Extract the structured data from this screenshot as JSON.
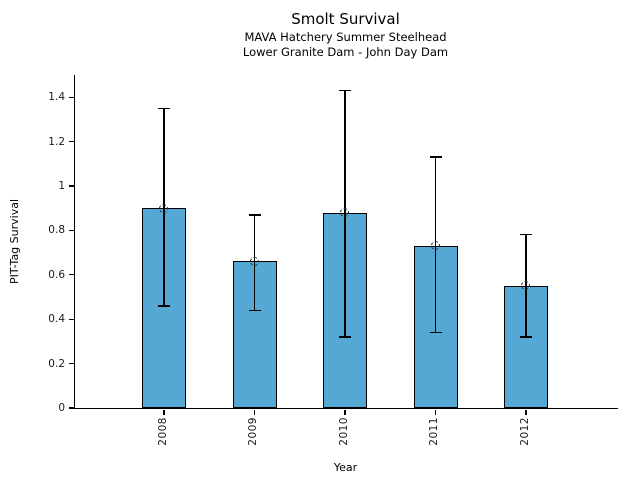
{
  "figure": {
    "title": "Smolt Survival",
    "subtitle_line1": "MAVA Hatchery Summer Steelhead",
    "subtitle_line2": "Lower Granite Dam - John Day Dam"
  },
  "chart_data": {
    "type": "bar",
    "title": "Smolt Survival",
    "subtitle": [
      "MAVA Hatchery Summer Steelhead",
      "Lower Granite Dam - John Day Dam"
    ],
    "xlabel": "Year",
    "ylabel": "PIT-Tag Survival",
    "categories": [
      "2008",
      "2009",
      "2010",
      "2011",
      "2012"
    ],
    "values": [
      0.9,
      0.66,
      0.88,
      0.73,
      0.55
    ],
    "error_low": [
      0.46,
      0.44,
      0.32,
      0.34,
      0.32
    ],
    "error_high": [
      1.35,
      0.87,
      1.43,
      1.13,
      0.78
    ],
    "ylim": [
      0,
      1.5
    ],
    "yticks": [
      0,
      0.2,
      0.4,
      0.6,
      0.8,
      1,
      1.2,
      1.4
    ],
    "ytick_labels": [
      "0",
      "0.2",
      "0.4",
      "0.6",
      "0.8",
      "1",
      "1.2",
      "1.4"
    ],
    "grid": false,
    "legend": null,
    "bar_color": "#56a8d4",
    "bar_edge_color": "#000000",
    "error_bar_color": "#000000",
    "marker_style": "open-dashed-circle"
  }
}
